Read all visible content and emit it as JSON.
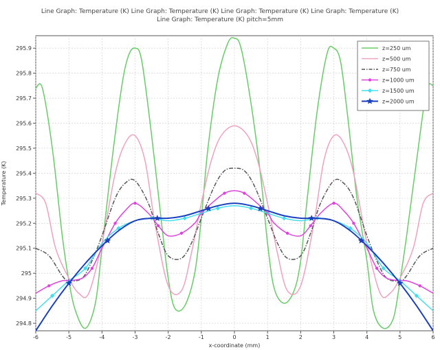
{
  "chart_data": {
    "type": "line",
    "title_lines": [
      "Line Graph: Temperature (K) Line Graph: Temperature (K) Line Graph: Temperature (K) Line Graph: Temperature (K)",
      "Line Graph: Temperature (K) pitch=5mm"
    ],
    "xlabel": "x-coordinate (mm)",
    "ylabel": "Temperature (K)",
    "xlim": [
      -6,
      6
    ],
    "ylim": [
      294.77,
      295.95
    ],
    "xticks": [
      "-6",
      "-5",
      "-4",
      "-3",
      "-2",
      "-1",
      "0",
      "1",
      "2",
      "3",
      "4",
      "5",
      "6"
    ],
    "yticks": [
      "294.8",
      "294.9",
      "295",
      "295.1",
      "295.2",
      "295.3",
      "295.4",
      "295.5",
      "295.6",
      "295.7",
      "295.8",
      "295.9"
    ],
    "grid": true,
    "legend_position": "top-right",
    "series": [
      {
        "name": "z=250 um",
        "color": "#66cc66",
        "style": "solid",
        "marker": "none",
        "x": [
          -6,
          -5.8,
          -5.5,
          -5.2,
          -5,
          -4.8,
          -4.5,
          -4.2,
          -4,
          -3.7,
          -3.4,
          -3.2,
          -3,
          -2.8,
          -2.5,
          -2.2,
          -2,
          -1.8,
          -1.5,
          -1.2,
          -1,
          -0.8,
          -0.5,
          -0.2,
          0,
          0.2,
          0.5,
          0.8,
          1,
          1.2,
          1.5,
          1.8,
          2,
          2.2,
          2.5,
          2.8,
          3,
          3.2,
          3.4,
          3.7,
          4,
          4.2,
          4.5,
          4.8,
          5,
          5.2,
          5.5,
          5.8,
          6
        ],
        "y": [
          295.74,
          295.74,
          295.5,
          295.15,
          294.97,
          294.85,
          294.78,
          294.88,
          295.1,
          295.45,
          295.75,
          295.87,
          295.9,
          295.85,
          295.55,
          295.2,
          294.98,
          294.86,
          294.87,
          295.0,
          295.22,
          295.5,
          295.78,
          295.92,
          295.94,
          295.9,
          295.68,
          295.38,
          295.12,
          294.94,
          294.88,
          294.93,
          295.05,
          295.3,
          295.65,
          295.88,
          295.9,
          295.85,
          295.65,
          295.3,
          295.05,
          294.85,
          294.78,
          294.82,
          294.97,
          295.15,
          295.45,
          295.73,
          295.75
        ]
      },
      {
        "name": "z=500 um",
        "color": "#f0a0c0",
        "style": "solid",
        "marker": "none",
        "x": [
          -6,
          -5.7,
          -5.4,
          -5,
          -4.7,
          -4.4,
          -4,
          -3.6,
          -3.3,
          -3,
          -2.7,
          -2.4,
          -2,
          -1.6,
          -1.3,
          -1,
          -0.7,
          -0.4,
          0,
          0.4,
          0.7,
          1,
          1.3,
          1.6,
          2,
          2.4,
          2.7,
          3,
          3.3,
          3.6,
          4,
          4.4,
          4.7,
          5,
          5.4,
          5.7,
          6
        ],
        "y": [
          295.32,
          295.28,
          295.1,
          294.98,
          294.92,
          294.92,
          295.12,
          295.4,
          295.52,
          295.55,
          295.45,
          295.2,
          294.95,
          294.93,
          295.08,
          295.28,
          295.45,
          295.55,
          295.59,
          295.55,
          295.45,
          295.28,
          295.08,
          294.93,
          294.95,
          295.2,
          295.45,
          295.55,
          295.52,
          295.4,
          295.12,
          294.92,
          294.92,
          294.98,
          295.1,
          295.28,
          295.32
        ]
      },
      {
        "name": "z=750 um",
        "color": "#555555",
        "style": "dashdot",
        "marker": "none",
        "x": [
          -6,
          -5.6,
          -5.2,
          -5,
          -4.6,
          -4.3,
          -4,
          -3.6,
          -3.3,
          -3,
          -2.6,
          -2.3,
          -2,
          -1.6,
          -1.3,
          -1,
          -0.6,
          -0.3,
          0,
          0.3,
          0.6,
          1,
          1.3,
          1.6,
          2,
          2.3,
          2.6,
          3,
          3.3,
          3.6,
          4,
          4.3,
          4.6,
          5,
          5.2,
          5.6,
          6
        ],
        "y": [
          295.1,
          295.07,
          294.99,
          294.97,
          294.98,
          295.05,
          295.15,
          295.3,
          295.36,
          295.37,
          295.28,
          295.16,
          295.07,
          295.06,
          295.12,
          295.22,
          295.35,
          295.41,
          295.42,
          295.41,
          295.35,
          295.22,
          295.12,
          295.06,
          295.07,
          295.16,
          295.28,
          295.37,
          295.36,
          295.3,
          295.15,
          295.05,
          294.98,
          294.97,
          294.99,
          295.07,
          295.1
        ]
      },
      {
        "name": "z=1000 um",
        "color": "#dd44dd",
        "style": "solid",
        "marker": "dot",
        "x": [
          -6,
          -5.6,
          -5.2,
          -5,
          -4.6,
          -4.3,
          -4,
          -3.6,
          -3.3,
          -3,
          -2.6,
          -2.3,
          -2,
          -1.6,
          -1.2,
          -1,
          -0.6,
          -0.3,
          0,
          0.3,
          0.6,
          1,
          1.2,
          1.6,
          2,
          2.3,
          2.6,
          3,
          3.3,
          3.6,
          4,
          4.3,
          4.6,
          5,
          5.2,
          5.6,
          6
        ],
        "y": [
          294.92,
          294.95,
          294.97,
          294.97,
          294.98,
          295.02,
          295.1,
          295.2,
          295.25,
          295.28,
          295.24,
          295.19,
          295.15,
          295.16,
          295.2,
          295.24,
          295.29,
          295.32,
          295.33,
          295.32,
          295.29,
          295.24,
          295.2,
          295.16,
          295.15,
          295.19,
          295.24,
          295.28,
          295.25,
          295.2,
          295.1,
          295.02,
          294.98,
          294.97,
          294.97,
          294.95,
          294.92
        ]
      },
      {
        "name": "z=1500 um",
        "color": "#44ddee",
        "style": "solid",
        "marker": "diamond",
        "x": [
          -6,
          -5.5,
          -5,
          -4.5,
          -4,
          -3.5,
          -3,
          -2.5,
          -2,
          -1.5,
          -1,
          -0.5,
          0,
          0.5,
          1,
          1.5,
          2,
          2.5,
          3,
          3.5,
          4,
          4.5,
          5,
          5.5,
          6
        ],
        "y": [
          294.85,
          294.91,
          294.97,
          295.02,
          295.12,
          295.18,
          295.21,
          295.22,
          295.21,
          295.22,
          295.24,
          295.26,
          295.27,
          295.26,
          295.24,
          295.22,
          295.21,
          295.22,
          295.21,
          295.18,
          295.12,
          295.02,
          294.97,
          294.91,
          294.85
        ]
      },
      {
        "name": "z=2000 um",
        "color": "#1a3fbf",
        "style": "solid",
        "marker": "star",
        "x": [
          -6,
          -5.5,
          -5,
          -4.5,
          -4,
          -3.5,
          -3,
          -2.5,
          -2,
          -1.5,
          -1,
          -0.5,
          0,
          0.5,
          1,
          1.5,
          2,
          2.5,
          3,
          3.5,
          4,
          4.5,
          5,
          5.5,
          6
        ],
        "y": [
          294.77,
          294.87,
          294.96,
          295.04,
          295.11,
          295.17,
          295.21,
          295.22,
          295.22,
          295.23,
          295.25,
          295.27,
          295.28,
          295.27,
          295.25,
          295.23,
          295.22,
          295.22,
          295.21,
          295.17,
          295.11,
          295.04,
          294.96,
          294.87,
          294.77
        ],
        "marker_x": [
          -5,
          -3.83,
          -2.33,
          -0.78,
          0.78,
          2.33,
          3.83,
          5
        ]
      }
    ]
  }
}
